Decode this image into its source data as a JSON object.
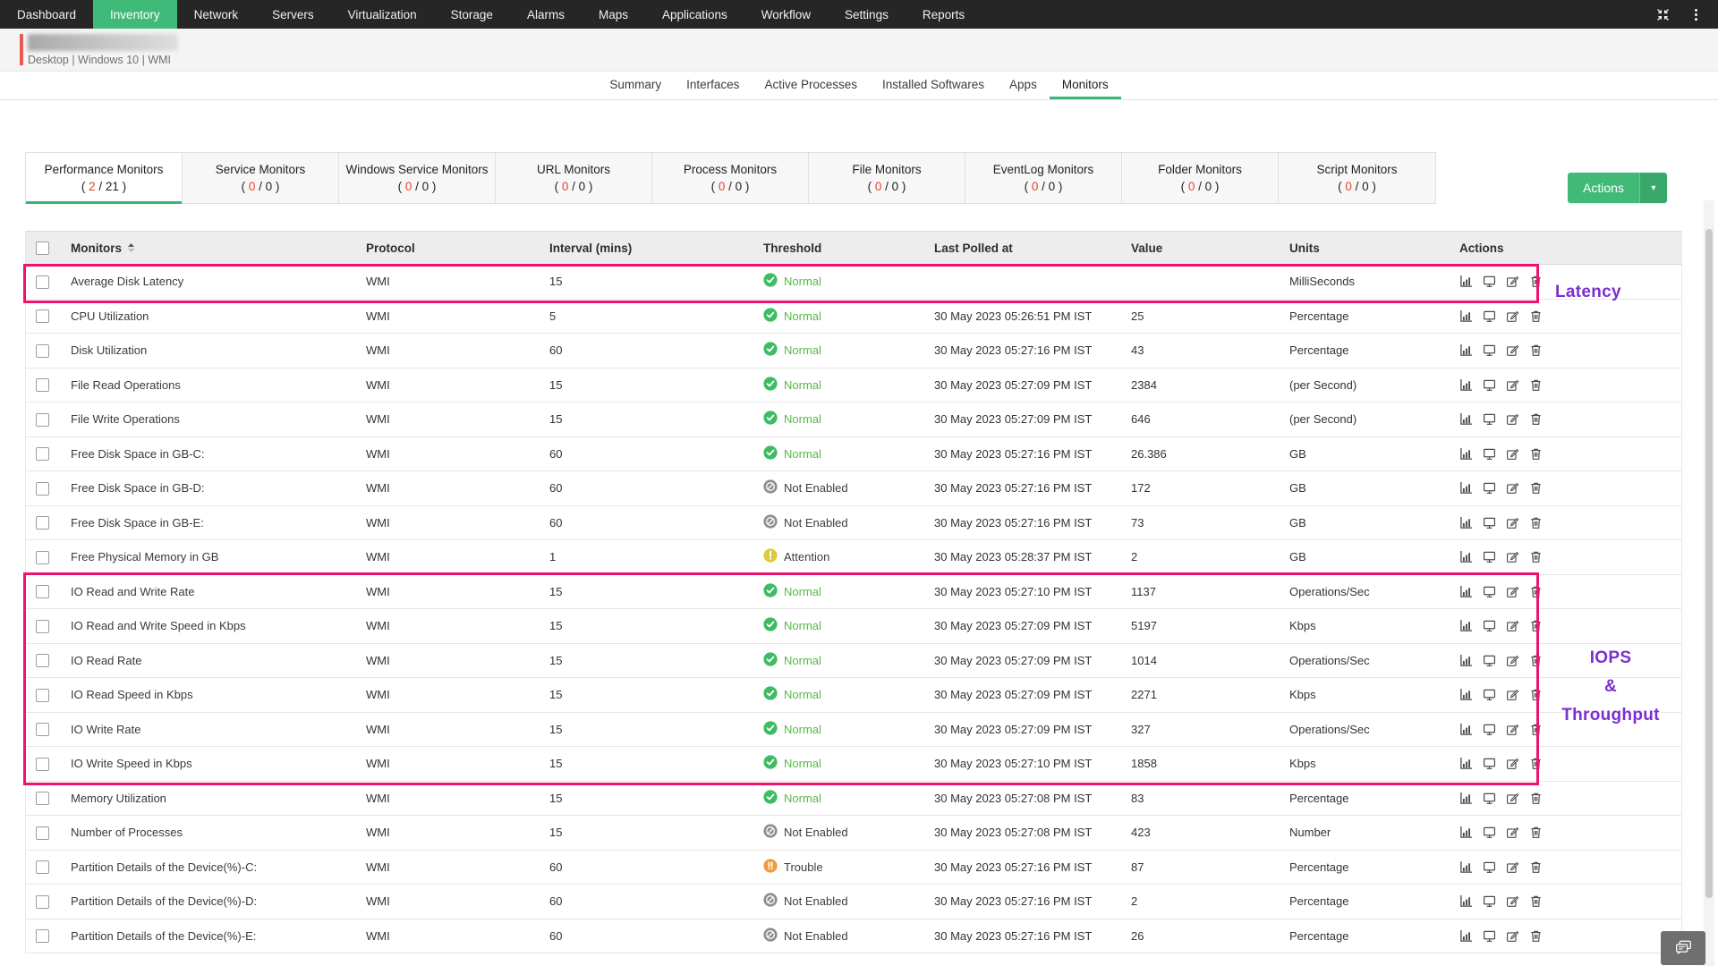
{
  "colors": {
    "nav_bg": "#262626",
    "brand_green": "#3bb574",
    "actions_green": "#41ba77",
    "highlight_pink": "#ed136e",
    "annotation_purple": "#7b2fd0",
    "count_red": "#e4442c",
    "status_normal": "#3fbb63",
    "status_not_enabled": "#8e8e8e",
    "status_attention": "#d9cc3d",
    "status_trouble": "#f09a3e",
    "device_status_red": "#e85a4f"
  },
  "nav": {
    "items": [
      "Dashboard",
      "Inventory",
      "Network",
      "Servers",
      "Virtualization",
      "Storage",
      "Alarms",
      "Maps",
      "Applications",
      "Workflow",
      "Settings",
      "Reports"
    ],
    "active": "Inventory",
    "right_icons": [
      "collapse-icon",
      "kebab-menu-icon"
    ]
  },
  "device": {
    "breadcrumb": "Desktop | Windows 10  | WMI"
  },
  "page_tabs": {
    "items": [
      "Summary",
      "Interfaces",
      "Active Processes",
      "Installed Softwares",
      "Apps",
      "Monitors"
    ],
    "active": "Monitors"
  },
  "monitor_tabs": {
    "active": "Performance Monitors",
    "count_format": {
      "open": "( ",
      "sep": " / ",
      "close": " )"
    },
    "items": [
      {
        "label": "Performance Monitors",
        "current": "2",
        "total": "21"
      },
      {
        "label": "Service Monitors",
        "current": "0",
        "total": "0"
      },
      {
        "label": "Windows Service Monitors",
        "current": "0",
        "total": "0"
      },
      {
        "label": "URL Monitors",
        "current": "0",
        "total": "0"
      },
      {
        "label": "Process Monitors",
        "current": "0",
        "total": "0"
      },
      {
        "label": "File Monitors",
        "current": "0",
        "total": "0"
      },
      {
        "label": "EventLog Monitors",
        "current": "0",
        "total": "0"
      },
      {
        "label": "Folder Monitors",
        "current": "0",
        "total": "0"
      },
      {
        "label": "Script Monitors",
        "current": "0",
        "total": "0"
      }
    ]
  },
  "actions_button": {
    "label": "Actions",
    "caret": "▾"
  },
  "table": {
    "columns": [
      "Monitors",
      "Protocol",
      "Interval (mins)",
      "Threshold",
      "Last Polled at",
      "Value",
      "Units",
      "Actions"
    ],
    "sorted_column": "Monitors",
    "statuses": {
      "normal": "Normal",
      "not_enabled": "Not Enabled",
      "attention": "Attention",
      "trouble": "Trouble"
    },
    "row_action_icons": [
      "chart-icon",
      "monitor-icon",
      "edit-icon",
      "delete-icon"
    ],
    "rows": [
      {
        "name": "Average Disk Latency",
        "protocol": "WMI",
        "interval": "15",
        "status": "normal",
        "last_polled": "",
        "value": "",
        "units": "MilliSeconds"
      },
      {
        "name": "CPU Utilization",
        "protocol": "WMI",
        "interval": "5",
        "status": "normal",
        "last_polled": "30 May 2023 05:26:51 PM IST",
        "value": "25",
        "units": "Percentage"
      },
      {
        "name": "Disk Utilization",
        "protocol": "WMI",
        "interval": "60",
        "status": "normal",
        "last_polled": "30 May 2023 05:27:16 PM IST",
        "value": "43",
        "units": "Percentage"
      },
      {
        "name": "File Read Operations",
        "protocol": "WMI",
        "interval": "15",
        "status": "normal",
        "last_polled": "30 May 2023 05:27:09 PM IST",
        "value": "2384",
        "units": "(per Second)"
      },
      {
        "name": "File Write Operations",
        "protocol": "WMI",
        "interval": "15",
        "status": "normal",
        "last_polled": "30 May 2023 05:27:09 PM IST",
        "value": "646",
        "units": "(per Second)"
      },
      {
        "name": "Free Disk Space in GB-C:",
        "protocol": "WMI",
        "interval": "60",
        "status": "normal",
        "last_polled": "30 May 2023 05:27:16 PM IST",
        "value": "26.386",
        "units": "GB"
      },
      {
        "name": "Free Disk Space in GB-D:",
        "protocol": "WMI",
        "interval": "60",
        "status": "not_enabled",
        "last_polled": "30 May 2023 05:27:16 PM IST",
        "value": "172",
        "units": "GB"
      },
      {
        "name": "Free Disk Space in GB-E:",
        "protocol": "WMI",
        "interval": "60",
        "status": "not_enabled",
        "last_polled": "30 May 2023 05:27:16 PM IST",
        "value": "73",
        "units": "GB"
      },
      {
        "name": "Free Physical Memory in GB",
        "protocol": "WMI",
        "interval": "1",
        "status": "attention",
        "last_polled": "30 May 2023 05:28:37 PM IST",
        "value": "2",
        "units": "GB"
      },
      {
        "name": "IO Read and Write Rate",
        "protocol": "WMI",
        "interval": "15",
        "status": "normal",
        "last_polled": "30 May 2023 05:27:10 PM IST",
        "value": "1137",
        "units": "Operations/Sec"
      },
      {
        "name": "IO Read and Write Speed in Kbps",
        "protocol": "WMI",
        "interval": "15",
        "status": "normal",
        "last_polled": "30 May 2023 05:27:09 PM IST",
        "value": "5197",
        "units": "Kbps"
      },
      {
        "name": "IO Read Rate",
        "protocol": "WMI",
        "interval": "15",
        "status": "normal",
        "last_polled": "30 May 2023 05:27:09 PM IST",
        "value": "1014",
        "units": "Operations/Sec"
      },
      {
        "name": "IO Read Speed in Kbps",
        "protocol": "WMI",
        "interval": "15",
        "status": "normal",
        "last_polled": "30 May 2023 05:27:09 PM IST",
        "value": "2271",
        "units": "Kbps"
      },
      {
        "name": "IO Write Rate",
        "protocol": "WMI",
        "interval": "15",
        "status": "normal",
        "last_polled": "30 May 2023 05:27:09 PM IST",
        "value": "327",
        "units": "Operations/Sec"
      },
      {
        "name": "IO Write Speed in Kbps",
        "protocol": "WMI",
        "interval": "15",
        "status": "normal",
        "last_polled": "30 May 2023 05:27:10 PM IST",
        "value": "1858",
        "units": "Kbps"
      },
      {
        "name": "Memory Utilization",
        "protocol": "WMI",
        "interval": "15",
        "status": "normal",
        "last_polled": "30 May 2023 05:27:08 PM IST",
        "value": "83",
        "units": "Percentage"
      },
      {
        "name": "Number of Processes",
        "protocol": "WMI",
        "interval": "15",
        "status": "not_enabled",
        "last_polled": "30 May 2023 05:27:08 PM IST",
        "value": "423",
        "units": "Number"
      },
      {
        "name": "Partition Details of the Device(%)-C:",
        "protocol": "WMI",
        "interval": "60",
        "status": "trouble",
        "last_polled": "30 May 2023 05:27:16 PM IST",
        "value": "87",
        "units": "Percentage"
      },
      {
        "name": "Partition Details of the Device(%)-D:",
        "protocol": "WMI",
        "interval": "60",
        "status": "not_enabled",
        "last_polled": "30 May 2023 05:27:16 PM IST",
        "value": "2",
        "units": "Percentage"
      },
      {
        "name": "Partition Details of the Device(%)-E:",
        "protocol": "WMI",
        "interval": "60",
        "status": "not_enabled",
        "last_polled": "30 May 2023 05:27:16 PM IST",
        "value": "26",
        "units": "Percentage"
      }
    ]
  },
  "annotations": {
    "latency": "Latency",
    "iops_line1": "IOPS",
    "iops_line2": "&",
    "iops_line3": "Throughput"
  }
}
